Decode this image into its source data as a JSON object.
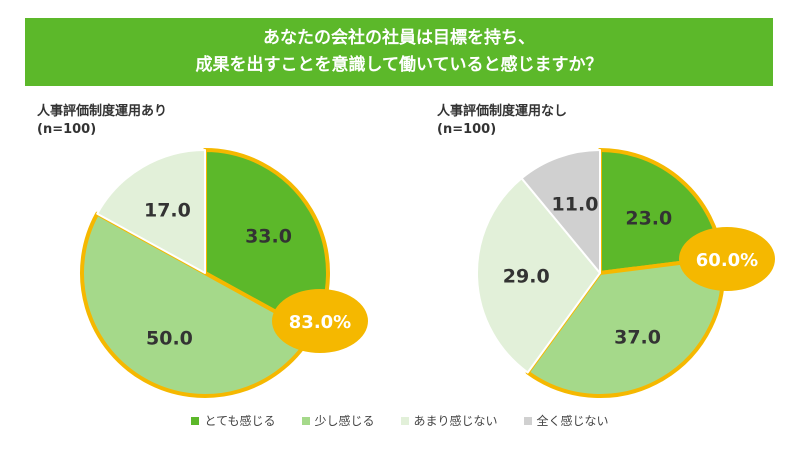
{
  "title_line1": "あなたの会社の社員は目標を持ち、",
  "title_line2": "成果を出すことを意識して働いていると感じますか？",
  "chart_data": [
    {
      "type": "pie",
      "title": "人事評価制度運用あり",
      "subtitle": "(n=100)",
      "categories": [
        "とても感じる",
        "少し感じる",
        "あまり感じない",
        "全く感じない"
      ],
      "values": [
        33.0,
        50.0,
        17.0,
        0
      ],
      "highlight": "83.0%"
    },
    {
      "type": "pie",
      "title": "人事評価制度運用なし",
      "subtitle": "(n=100)",
      "categories": [
        "とても感じる",
        "少し感じる",
        "あまり感じない",
        "全く感じない"
      ],
      "values": [
        23.0,
        37.0,
        29.0,
        11.0
      ],
      "highlight": "60.0%"
    }
  ],
  "legend": [
    "とても感じる",
    "少し感じる",
    "あまり感じない",
    "全く感じない"
  ],
  "colors": [
    "#5cb82a",
    "#a5d98a",
    "#e2f0d9",
    "#d0d0d0"
  ],
  "highlight_color": "#f5b800"
}
